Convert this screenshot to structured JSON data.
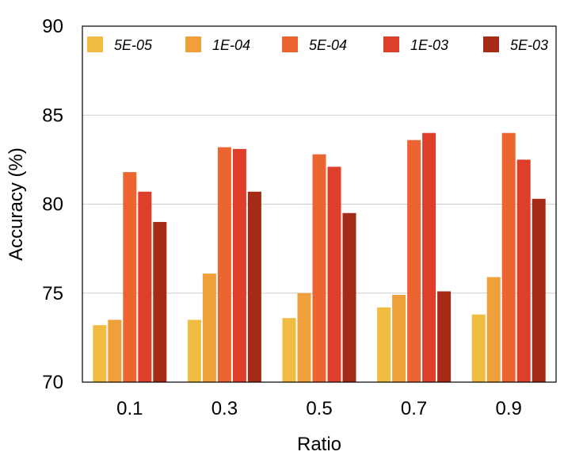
{
  "chart_data": {
    "type": "bar",
    "title": "",
    "xlabel": "Ratio",
    "ylabel": "Accuracy (%)",
    "categories": [
      "0.1",
      "0.3",
      "0.5",
      "0.7",
      "0.9"
    ],
    "ylim": [
      70,
      90
    ],
    "yticks": [
      "70",
      "75",
      "80",
      "85",
      "90"
    ],
    "grid": "horizontal",
    "legend_position": "top",
    "series": [
      {
        "name": "5E-05",
        "color": "#F0BC42",
        "values": [
          73.2,
          73.5,
          73.6,
          74.2,
          73.8
        ]
      },
      {
        "name": "1E-04",
        "color": "#F0A03A",
        "values": [
          73.5,
          76.1,
          75.0,
          74.9,
          75.9
        ]
      },
      {
        "name": "5E-04",
        "color": "#EC6530",
        "values": [
          81.8,
          83.2,
          82.8,
          83.6,
          84.0
        ]
      },
      {
        "name": "1E-03",
        "color": "#DE3F2A",
        "values": [
          80.7,
          83.1,
          82.1,
          84.0,
          82.5
        ]
      },
      {
        "name": "5E-03",
        "color": "#A62B17",
        "values": [
          79.0,
          80.7,
          79.5,
          75.1,
          80.3
        ]
      }
    ]
  }
}
